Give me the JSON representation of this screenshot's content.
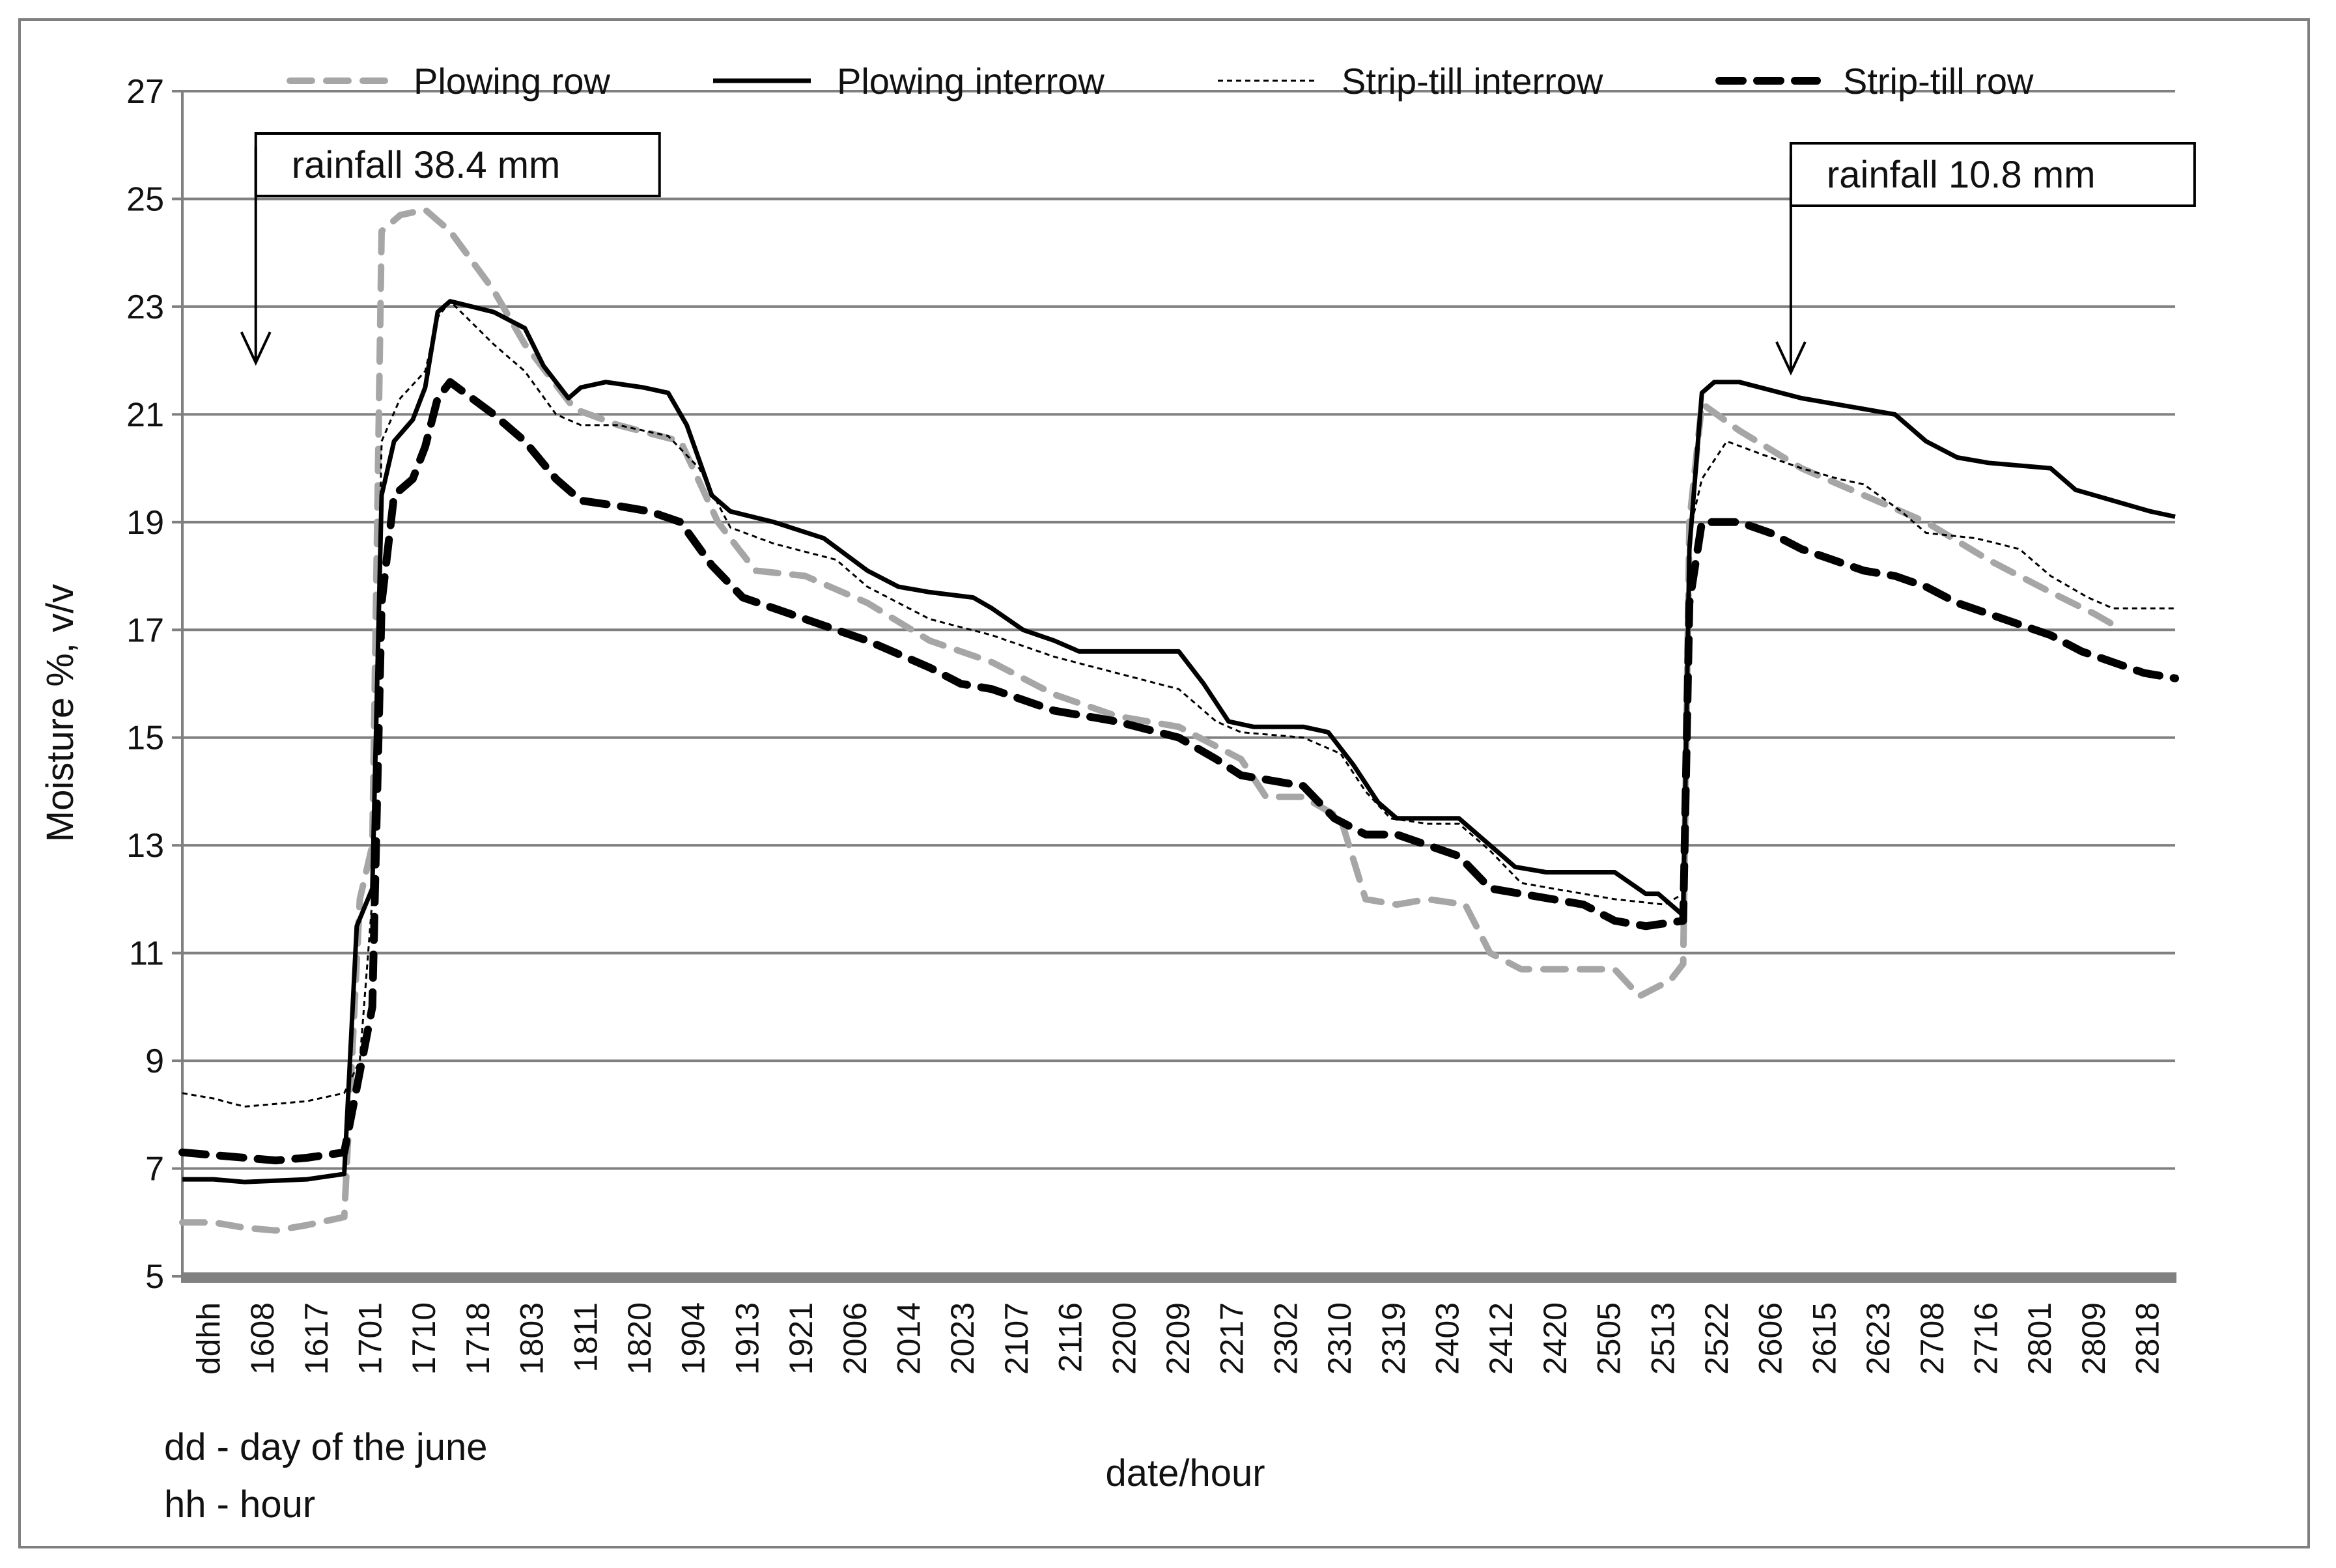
{
  "chart_data": {
    "type": "line",
    "title": "",
    "xlabel": "date/hour",
    "ylabel": "Moisture %, v/v",
    "ylim": [
      5,
      27
    ],
    "yticks": [
      5,
      7,
      9,
      11,
      13,
      15,
      17,
      19,
      21,
      23,
      25,
      27
    ],
    "grid": true,
    "legend_position": "top",
    "x_first_label": "ddhh",
    "categories": [
      "1608",
      "1617",
      "1701",
      "1710",
      "1718",
      "1803",
      "1811",
      "1820",
      "1904",
      "1913",
      "1921",
      "2006",
      "2014",
      "2023",
      "2107",
      "2116",
      "2200",
      "2209",
      "2217",
      "2302",
      "2310",
      "2319",
      "2403",
      "2412",
      "2420",
      "2505",
      "2513",
      "2522",
      "2606",
      "2615",
      "2623",
      "2708",
      "2716",
      "2801",
      "2809",
      "2818"
    ],
    "footnote_lines": [
      "dd - day of the june",
      "hh - hour"
    ],
    "annotations": [
      {
        "text": "rainfall 38.4 mm",
        "x": 1.2
      },
      {
        "text": "rainfall 10.8 mm",
        "x": 25.85
      }
    ],
    "series": [
      {
        "name": "Plowing row",
        "color": "#a6a6a6",
        "style": "dashed-gray",
        "points": [
          [
            0,
            6.0
          ],
          [
            0.5,
            6.0
          ],
          [
            1,
            5.9
          ],
          [
            1.5,
            5.85
          ],
          [
            2,
            5.95
          ],
          [
            2.6,
            6.1
          ],
          [
            2.85,
            12.0
          ],
          [
            3.05,
            13.0
          ],
          [
            3.2,
            24.4
          ],
          [
            3.5,
            24.7
          ],
          [
            3.9,
            24.8
          ],
          [
            4.3,
            24.4
          ],
          [
            5,
            23.3
          ],
          [
            5.5,
            22.3
          ],
          [
            6.3,
            21.1
          ],
          [
            7,
            20.8
          ],
          [
            8,
            20.5
          ],
          [
            8.6,
            19.0
          ],
          [
            9.2,
            18.1
          ],
          [
            10,
            18.0
          ],
          [
            11,
            17.5
          ],
          [
            12,
            16.8
          ],
          [
            13,
            16.4
          ],
          [
            14,
            15.8
          ],
          [
            15,
            15.4
          ],
          [
            16,
            15.2
          ],
          [
            17,
            14.6
          ],
          [
            17.4,
            13.9
          ],
          [
            18,
            13.9
          ],
          [
            18.6,
            13.5
          ],
          [
            19,
            12.0
          ],
          [
            19.5,
            11.9
          ],
          [
            20,
            12.0
          ],
          [
            20.6,
            11.9
          ],
          [
            21,
            11.0
          ],
          [
            21.5,
            10.7
          ],
          [
            22,
            10.7
          ],
          [
            22.5,
            10.7
          ],
          [
            23,
            10.7
          ],
          [
            23.4,
            10.2
          ],
          [
            23.9,
            10.5
          ],
          [
            24.1,
            10.8
          ],
          [
            24.2,
            19.0
          ],
          [
            24.4,
            21.2
          ],
          [
            25,
            20.7
          ],
          [
            26,
            20.0
          ],
          [
            27,
            19.5
          ],
          [
            28,
            19.0
          ],
          [
            29,
            18.3
          ],
          [
            30,
            17.7
          ],
          [
            30.7,
            17.3
          ],
          [
            31,
            17.1
          ]
        ]
      },
      {
        "name": "Plowing interrow",
        "color": "#000000",
        "style": "solid",
        "points": [
          [
            0,
            6.8
          ],
          [
            0.5,
            6.8
          ],
          [
            1,
            6.75
          ],
          [
            2,
            6.8
          ],
          [
            2.6,
            6.9
          ],
          [
            2.8,
            11.5
          ],
          [
            3.05,
            12.2
          ],
          [
            3.2,
            19.5
          ],
          [
            3.4,
            20.5
          ],
          [
            3.7,
            20.9
          ],
          [
            3.9,
            21.5
          ],
          [
            4.1,
            22.9
          ],
          [
            4.3,
            23.1
          ],
          [
            5,
            22.9
          ],
          [
            5.5,
            22.6
          ],
          [
            5.8,
            21.9
          ],
          [
            6.2,
            21.3
          ],
          [
            6.4,
            21.5
          ],
          [
            6.8,
            21.6
          ],
          [
            7.4,
            21.5
          ],
          [
            7.8,
            21.4
          ],
          [
            8.1,
            20.8
          ],
          [
            8.5,
            19.5
          ],
          [
            8.8,
            19.2
          ],
          [
            9.5,
            19.0
          ],
          [
            10.3,
            18.7
          ],
          [
            11,
            18.1
          ],
          [
            11.5,
            17.8
          ],
          [
            12,
            17.7
          ],
          [
            12.7,
            17.6
          ],
          [
            13,
            17.4
          ],
          [
            13.5,
            17.0
          ],
          [
            14,
            16.8
          ],
          [
            14.4,
            16.6
          ],
          [
            15,
            16.6
          ],
          [
            15.5,
            16.6
          ],
          [
            16,
            16.6
          ],
          [
            16.4,
            16.0
          ],
          [
            16.8,
            15.3
          ],
          [
            17.2,
            15.2
          ],
          [
            18,
            15.2
          ],
          [
            18.4,
            15.1
          ],
          [
            18.8,
            14.5
          ],
          [
            19.2,
            13.8
          ],
          [
            19.5,
            13.5
          ],
          [
            20,
            13.5
          ],
          [
            20.5,
            13.5
          ],
          [
            21,
            13.0
          ],
          [
            21.4,
            12.6
          ],
          [
            21.9,
            12.5
          ],
          [
            22.5,
            12.5
          ],
          [
            23,
            12.5
          ],
          [
            23.5,
            12.1
          ],
          [
            23.7,
            12.1
          ],
          [
            24.1,
            11.7
          ],
          [
            24.2,
            18.5
          ],
          [
            24.4,
            21.4
          ],
          [
            24.6,
            21.6
          ],
          [
            25,
            21.6
          ],
          [
            26,
            21.3
          ],
          [
            27,
            21.1
          ],
          [
            27.5,
            21.0
          ],
          [
            28,
            20.5
          ],
          [
            28.5,
            20.2
          ],
          [
            29,
            20.1
          ],
          [
            30,
            20.0
          ],
          [
            30.4,
            19.6
          ],
          [
            31,
            19.4
          ],
          [
            31.6,
            19.2
          ],
          [
            32,
            19.1
          ]
        ]
      },
      {
        "name": "Strip-till interrow",
        "color": "#000000",
        "style": "dotted",
        "points": [
          [
            0,
            8.4
          ],
          [
            0.5,
            8.3
          ],
          [
            1,
            8.15
          ],
          [
            1.5,
            8.2
          ],
          [
            2,
            8.25
          ],
          [
            2.6,
            8.4
          ],
          [
            2.85,
            9.0
          ],
          [
            3.05,
            12.0
          ],
          [
            3.2,
            20.5
          ],
          [
            3.5,
            21.3
          ],
          [
            3.9,
            21.8
          ],
          [
            4.1,
            22.8
          ],
          [
            4.3,
            23.1
          ],
          [
            5,
            22.3
          ],
          [
            5.5,
            21.8
          ],
          [
            6,
            21.0
          ],
          [
            6.4,
            20.8
          ],
          [
            7,
            20.8
          ],
          [
            7.8,
            20.6
          ],
          [
            8.3,
            20.0
          ],
          [
            8.8,
            18.9
          ],
          [
            9.5,
            18.6
          ],
          [
            10.5,
            18.3
          ],
          [
            11,
            17.8
          ],
          [
            12,
            17.2
          ],
          [
            13,
            16.9
          ],
          [
            14,
            16.5
          ],
          [
            15,
            16.2
          ],
          [
            16,
            15.9
          ],
          [
            16.6,
            15.3
          ],
          [
            17,
            15.1
          ],
          [
            18,
            15.0
          ],
          [
            18.6,
            14.7
          ],
          [
            19,
            14.0
          ],
          [
            19.4,
            13.5
          ],
          [
            20,
            13.4
          ],
          [
            20.5,
            13.4
          ],
          [
            21,
            12.9
          ],
          [
            21.5,
            12.3
          ],
          [
            22,
            12.2
          ],
          [
            23,
            12.0
          ],
          [
            23.8,
            11.9
          ],
          [
            24.1,
            12.1
          ],
          [
            24.2,
            18.8
          ],
          [
            24.4,
            19.8
          ],
          [
            24.8,
            20.5
          ],
          [
            25.5,
            20.2
          ],
          [
            26,
            20.0
          ],
          [
            26.6,
            19.8
          ],
          [
            27,
            19.7
          ],
          [
            27.6,
            19.2
          ],
          [
            28,
            18.8
          ],
          [
            28.8,
            18.7
          ],
          [
            29.5,
            18.5
          ],
          [
            30,
            18.0
          ],
          [
            30.6,
            17.6
          ],
          [
            31,
            17.4
          ],
          [
            32,
            17.4
          ]
        ]
      },
      {
        "name": "Strip-till row",
        "color": "#000000",
        "style": "dashed-black",
        "points": [
          [
            0,
            7.3
          ],
          [
            0.5,
            7.25
          ],
          [
            1,
            7.2
          ],
          [
            1.5,
            7.15
          ],
          [
            2,
            7.2
          ],
          [
            2.6,
            7.3
          ],
          [
            2.8,
            8.5
          ],
          [
            3.05,
            10.0
          ],
          [
            3.2,
            17.5
          ],
          [
            3.4,
            19.5
          ],
          [
            3.7,
            19.8
          ],
          [
            3.9,
            20.4
          ],
          [
            4.1,
            21.3
          ],
          [
            4.3,
            21.6
          ],
          [
            5,
            21.0
          ],
          [
            5.5,
            20.5
          ],
          [
            6,
            19.8
          ],
          [
            6.4,
            19.4
          ],
          [
            7,
            19.3
          ],
          [
            7.5,
            19.2
          ],
          [
            8,
            19.0
          ],
          [
            8.5,
            18.2
          ],
          [
            9,
            17.6
          ],
          [
            10,
            17.2
          ],
          [
            10.5,
            17.0
          ],
          [
            11,
            16.8
          ],
          [
            12,
            16.3
          ],
          [
            12.5,
            16.0
          ],
          [
            13,
            15.9
          ],
          [
            14,
            15.5
          ],
          [
            14.5,
            15.4
          ],
          [
            15,
            15.3
          ],
          [
            16,
            15.0
          ],
          [
            16.6,
            14.6
          ],
          [
            17,
            14.3
          ],
          [
            17.5,
            14.2
          ],
          [
            18,
            14.1
          ],
          [
            18.5,
            13.5
          ],
          [
            19,
            13.2
          ],
          [
            19.5,
            13.2
          ],
          [
            20,
            13.0
          ],
          [
            20.5,
            12.8
          ],
          [
            21,
            12.2
          ],
          [
            21.5,
            12.1
          ],
          [
            22,
            12.0
          ],
          [
            22.5,
            11.9
          ],
          [
            23,
            11.6
          ],
          [
            23.5,
            11.5
          ],
          [
            24.1,
            11.6
          ],
          [
            24.2,
            17.5
          ],
          [
            24.4,
            19.0
          ],
          [
            25,
            19.0
          ],
          [
            25.5,
            18.8
          ],
          [
            26,
            18.5
          ],
          [
            26.5,
            18.3
          ],
          [
            27,
            18.1
          ],
          [
            27.5,
            18.0
          ],
          [
            28,
            17.8
          ],
          [
            28.5,
            17.5
          ],
          [
            29,
            17.3
          ],
          [
            29.5,
            17.1
          ],
          [
            30,
            16.9
          ],
          [
            30.5,
            16.6
          ],
          [
            31,
            16.4
          ],
          [
            31.5,
            16.2
          ],
          [
            32,
            16.1
          ]
        ]
      }
    ]
  }
}
